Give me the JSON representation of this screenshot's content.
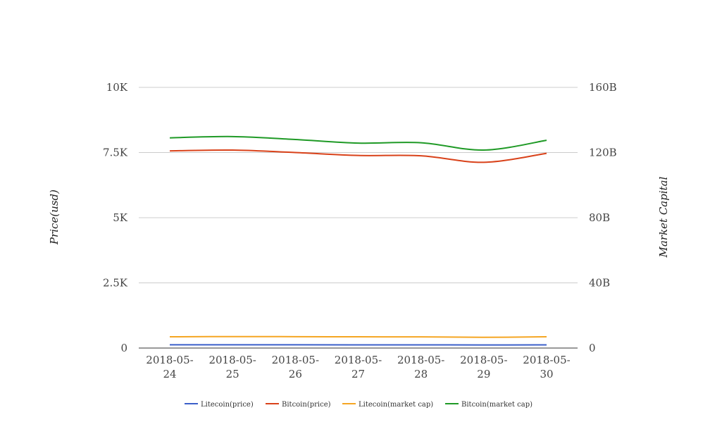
{
  "chart_data": {
    "type": "line",
    "x": [
      "2018-05-24",
      "2018-05-25",
      "2018-05-26",
      "2018-05-27",
      "2018-05-28",
      "2018-05-29",
      "2018-05-30"
    ],
    "x_tick_labels": [
      [
        "2018-05-",
        "24"
      ],
      [
        "2018-05-",
        "25"
      ],
      [
        "2018-05-",
        "26"
      ],
      [
        "2018-05-",
        "27"
      ],
      [
        "2018-05-",
        "28"
      ],
      [
        "2018-05-",
        "29"
      ],
      [
        "2018-05-",
        "30"
      ]
    ],
    "ylabel": "Price(usd)",
    "y2label": "Market Capital",
    "ylim": [
      0,
      10000
    ],
    "y2lim": [
      0,
      160000000000
    ],
    "y_ticks": [
      0,
      2500,
      5000,
      7500,
      10000
    ],
    "y_tick_labels": [
      "0",
      "2.5K",
      "5K",
      "7.5K",
      "10K"
    ],
    "y2_ticks": [
      0,
      40000000000,
      80000000000,
      120000000000,
      160000000000
    ],
    "y2_tick_labels": [
      "0",
      "40B",
      "80B",
      "120B",
      "160B"
    ],
    "grid": true,
    "legend_position": "bottom",
    "series": [
      {
        "name": "Litecoin(price)",
        "axis": "left",
        "color": "#3b5fc9",
        "values": [
          125,
          124,
          124,
          123,
          122,
          118,
          122
        ]
      },
      {
        "name": "Bitcoin(price)",
        "axis": "right",
        "color": "#d9421a",
        "values": [
          121000000000,
          121500000000,
          120000000000,
          118200000000,
          118000000000,
          114000000000,
          119500000000
        ]
      },
      {
        "name": "Litecoin(market cap)",
        "axis": "right",
        "color": "#f5a623",
        "values": [
          6900000000,
          7050000000,
          7000000000,
          6900000000,
          6850000000,
          6600000000,
          6900000000
        ]
      },
      {
        "name": "Bitcoin(market cap)",
        "axis": "right",
        "color": "#1f9a26",
        "values": [
          129000000000,
          129800000000,
          128000000000,
          125800000000,
          126000000000,
          121500000000,
          127500000000
        ]
      }
    ]
  }
}
